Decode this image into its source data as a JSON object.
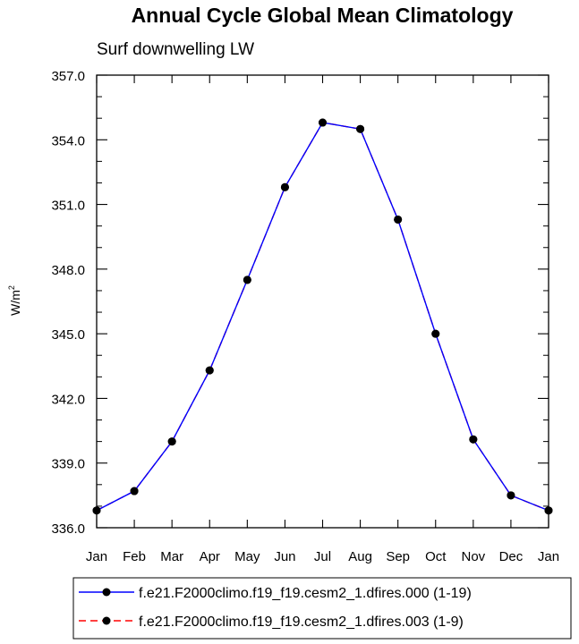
{
  "chart_data": {
    "type": "line",
    "title": "Annual Cycle Global Mean Climatology",
    "subtitle": "Surf downwelling LW",
    "ylabel": "W/m",
    "ylabel_sup": "2",
    "xlabel": "",
    "categories": [
      "Jan",
      "Feb",
      "Mar",
      "Apr",
      "May",
      "Jun",
      "Jul",
      "Aug",
      "Sep",
      "Oct",
      "Nov",
      "Dec",
      "Jan"
    ],
    "ylim": [
      336.0,
      357.0
    ],
    "yticks": [
      "336.0",
      "339.0",
      "342.0",
      "345.0",
      "348.0",
      "351.0",
      "354.0",
      "357.0"
    ],
    "grid": false,
    "legend_position": "bottom",
    "series": [
      {
        "name": "f.e21.F2000climo.f19_f19.cesm2_1.dfires.000 (1-19)",
        "color": "#0000ff",
        "dash": "solid",
        "marker": "filled-circle",
        "values": [
          336.8,
          337.7,
          340.0,
          343.3,
          347.5,
          351.8,
          354.8,
          354.5,
          350.3,
          345.0,
          340.1,
          337.5,
          336.8
        ]
      },
      {
        "name": "f.e21.F2000climo.f19_f19.cesm2_1.dfires.003 (1-9)",
        "color": "#ff0000",
        "dash": "dashed",
        "marker": "filled-circle",
        "values": [
          336.8,
          337.7,
          340.0,
          343.3,
          347.5,
          351.8,
          354.8,
          354.5,
          350.3,
          345.0,
          340.1,
          337.5,
          336.8
        ]
      }
    ]
  }
}
